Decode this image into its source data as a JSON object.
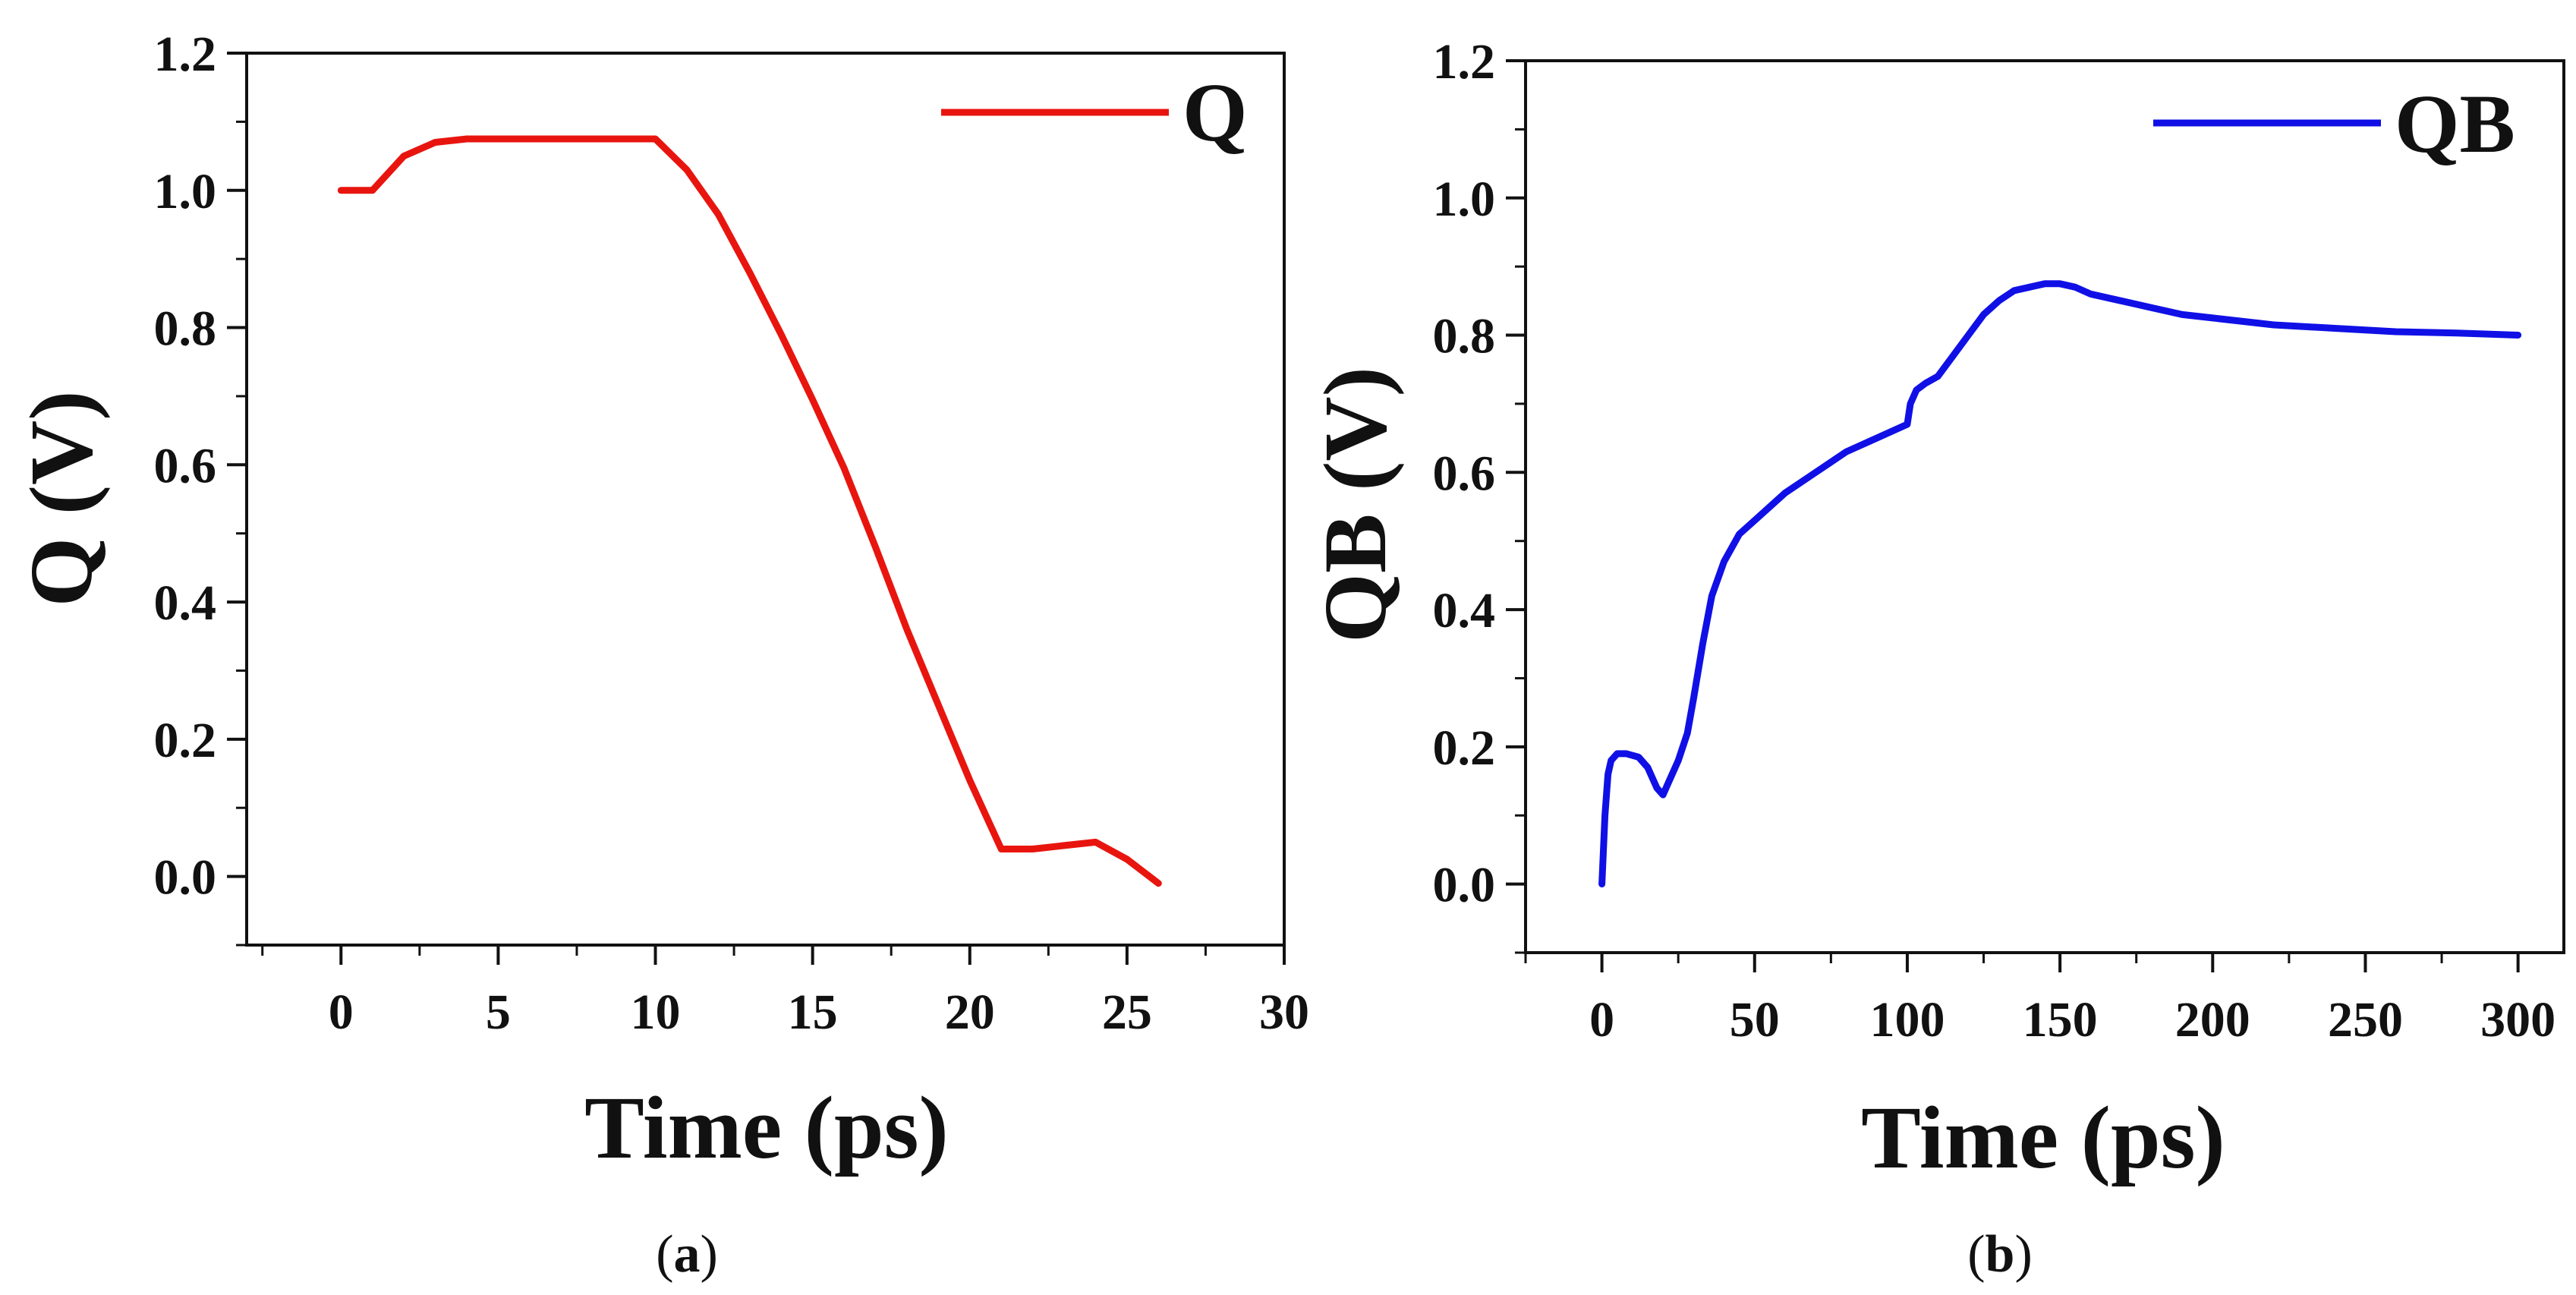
{
  "chart_data": [
    {
      "type": "line",
      "panel": "a",
      "caption_letter": "a",
      "xlabel": "Time (ps)",
      "ylabel": "Q (V)",
      "xlim": [
        -3,
        30
      ],
      "ylim": [
        -0.1,
        1.2
      ],
      "xticks": [
        0,
        5,
        10,
        15,
        20,
        25,
        30
      ],
      "xtick_labels": [
        "0",
        "5",
        "10",
        "15",
        "20",
        "25",
        "30"
      ],
      "yticks": [
        0.0,
        0.2,
        0.4,
        0.6,
        0.8,
        1.0,
        1.2
      ],
      "ytick_labels": [
        "0.0",
        "0.2",
        "0.4",
        "0.6",
        "0.8",
        "1.0",
        "1.2"
      ],
      "legend_position": "top-right",
      "series": [
        {
          "name": "Q",
          "color": "#e8150f",
          "x": [
            0,
            1,
            2,
            3,
            4,
            5,
            6,
            7,
            8,
            9,
            10,
            11,
            12,
            13,
            14,
            15,
            16,
            17,
            18,
            19,
            20,
            21,
            22,
            23,
            24,
            25,
            26
          ],
          "y": [
            1.0,
            1.0,
            1.05,
            1.07,
            1.075,
            1.075,
            1.075,
            1.075,
            1.075,
            1.075,
            1.075,
            1.03,
            0.965,
            0.88,
            0.79,
            0.695,
            0.595,
            0.48,
            0.36,
            0.25,
            0.14,
            0.04,
            0.04,
            0.045,
            0.05,
            0.025,
            -0.01
          ]
        }
      ]
    },
    {
      "type": "line",
      "panel": "b",
      "caption_letter": "b",
      "xlabel": "Time (ps)",
      "ylabel": "QB (V)",
      "xlim": [
        -25,
        315
      ],
      "ylim": [
        -0.1,
        1.2
      ],
      "xticks": [
        0,
        50,
        100,
        150,
        200,
        250,
        300
      ],
      "xtick_labels": [
        "0",
        "50",
        "100",
        "150",
        "200",
        "250",
        "300"
      ],
      "yticks": [
        0.0,
        0.2,
        0.4,
        0.6,
        0.8,
        1.0,
        1.2
      ],
      "ytick_labels": [
        "0.0",
        "0.2",
        "0.4",
        "0.6",
        "0.8",
        "1.0",
        "1.2"
      ],
      "legend_position": "top-right",
      "series": [
        {
          "name": "QB",
          "color": "#1010e6",
          "x": [
            0,
            1,
            2,
            3,
            5,
            8,
            12,
            15,
            18,
            20,
            22,
            25,
            28,
            30,
            33,
            36,
            40,
            45,
            50,
            55,
            60,
            70,
            80,
            90,
            100,
            101,
            103,
            106,
            110,
            115,
            120,
            125,
            130,
            135,
            140,
            145,
            150,
            155,
            160,
            170,
            180,
            190,
            200,
            220,
            240,
            260,
            280,
            300
          ],
          "y": [
            0.0,
            0.1,
            0.16,
            0.18,
            0.19,
            0.19,
            0.185,
            0.17,
            0.14,
            0.13,
            0.15,
            0.18,
            0.22,
            0.27,
            0.35,
            0.42,
            0.47,
            0.51,
            0.53,
            0.55,
            0.57,
            0.6,
            0.63,
            0.65,
            0.67,
            0.7,
            0.72,
            0.73,
            0.74,
            0.77,
            0.8,
            0.83,
            0.85,
            0.865,
            0.87,
            0.875,
            0.875,
            0.87,
            0.86,
            0.85,
            0.84,
            0.83,
            0.825,
            0.815,
            0.81,
            0.805,
            0.803,
            0.8
          ]
        }
      ]
    }
  ]
}
